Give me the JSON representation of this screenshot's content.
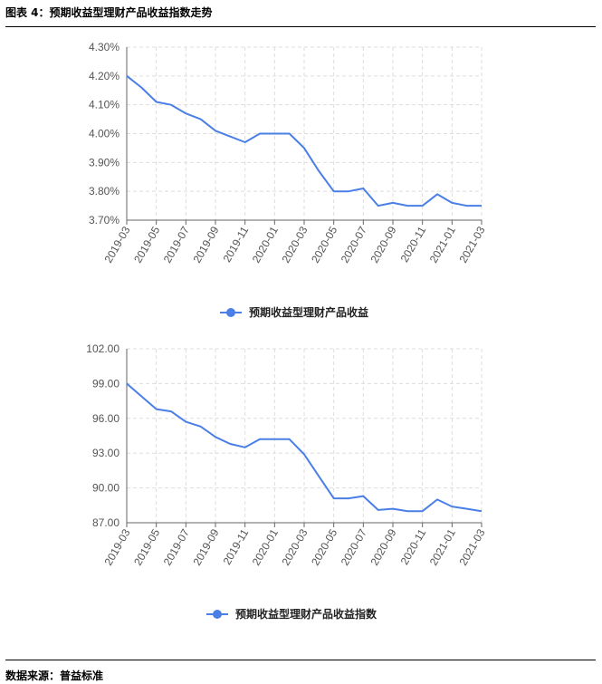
{
  "header": {
    "title": "图表 4：预期收益型理财产品收益指数走势"
  },
  "footer": {
    "source": "数据来源：普益标准"
  },
  "colors": {
    "line": "#4a7fe6",
    "axis": "#666666",
    "grid": "#dddddd"
  },
  "chart_data": [
    {
      "type": "line",
      "x": [
        "2019-03",
        "2019-04",
        "2019-05",
        "2019-06",
        "2019-07",
        "2019-08",
        "2019-09",
        "2019-10",
        "2019-11",
        "2019-12",
        "2020-01",
        "2020-02",
        "2020-03",
        "2020-04",
        "2020-05",
        "2020-06",
        "2020-07",
        "2020-08",
        "2020-09",
        "2020-10",
        "2020-11",
        "2020-12",
        "2021-01",
        "2021-02",
        "2021-03"
      ],
      "x_tick_labels": [
        "2019-03",
        "2019-05",
        "2019-07",
        "2019-09",
        "2019-11",
        "2020-01",
        "2020-03",
        "2020-05",
        "2020-07",
        "2020-09",
        "2020-11",
        "2021-01",
        "2021-03"
      ],
      "series": [
        {
          "name": "预期收益型理财产品收益",
          "values": [
            4.2,
            4.16,
            4.11,
            4.1,
            4.07,
            4.05,
            4.01,
            3.99,
            3.97,
            4.0,
            4.0,
            4.0,
            3.95,
            3.87,
            3.8,
            3.8,
            3.81,
            3.75,
            3.76,
            3.75,
            3.75,
            3.79,
            3.76,
            3.75,
            3.75
          ]
        }
      ],
      "y_ticks": [
        "3.70%",
        "3.80%",
        "3.90%",
        "4.00%",
        "4.10%",
        "4.20%",
        "4.30%"
      ],
      "ylim": [
        3.7,
        4.3
      ],
      "grid": true,
      "legend": "bottom-center"
    },
    {
      "type": "line",
      "x": [
        "2019-03",
        "2019-04",
        "2019-05",
        "2019-06",
        "2019-07",
        "2019-08",
        "2019-09",
        "2019-10",
        "2019-11",
        "2019-12",
        "2020-01",
        "2020-02",
        "2020-03",
        "2020-04",
        "2020-05",
        "2020-06",
        "2020-07",
        "2020-08",
        "2020-09",
        "2020-10",
        "2020-11",
        "2020-12",
        "2021-01",
        "2021-02",
        "2021-03"
      ],
      "x_tick_labels": [
        "2019-03",
        "2019-05",
        "2019-07",
        "2019-09",
        "2019-11",
        "2020-01",
        "2020-03",
        "2020-05",
        "2020-07",
        "2020-09",
        "2020-11",
        "2021-01",
        "2021-03"
      ],
      "series": [
        {
          "name": "预期收益型理财产品收益指数",
          "values": [
            99.0,
            97.9,
            96.8,
            96.6,
            95.7,
            95.3,
            94.4,
            93.8,
            93.5,
            94.2,
            94.2,
            94.2,
            92.9,
            91.0,
            89.1,
            89.1,
            89.3,
            88.1,
            88.2,
            88.0,
            88.0,
            89.0,
            88.4,
            88.2,
            88.0
          ]
        }
      ],
      "y_ticks": [
        "87.00",
        "90.00",
        "93.00",
        "96.00",
        "99.00",
        "102.00"
      ],
      "ylim": [
        87.0,
        102.0
      ],
      "grid": true,
      "legend": "bottom-center"
    }
  ]
}
